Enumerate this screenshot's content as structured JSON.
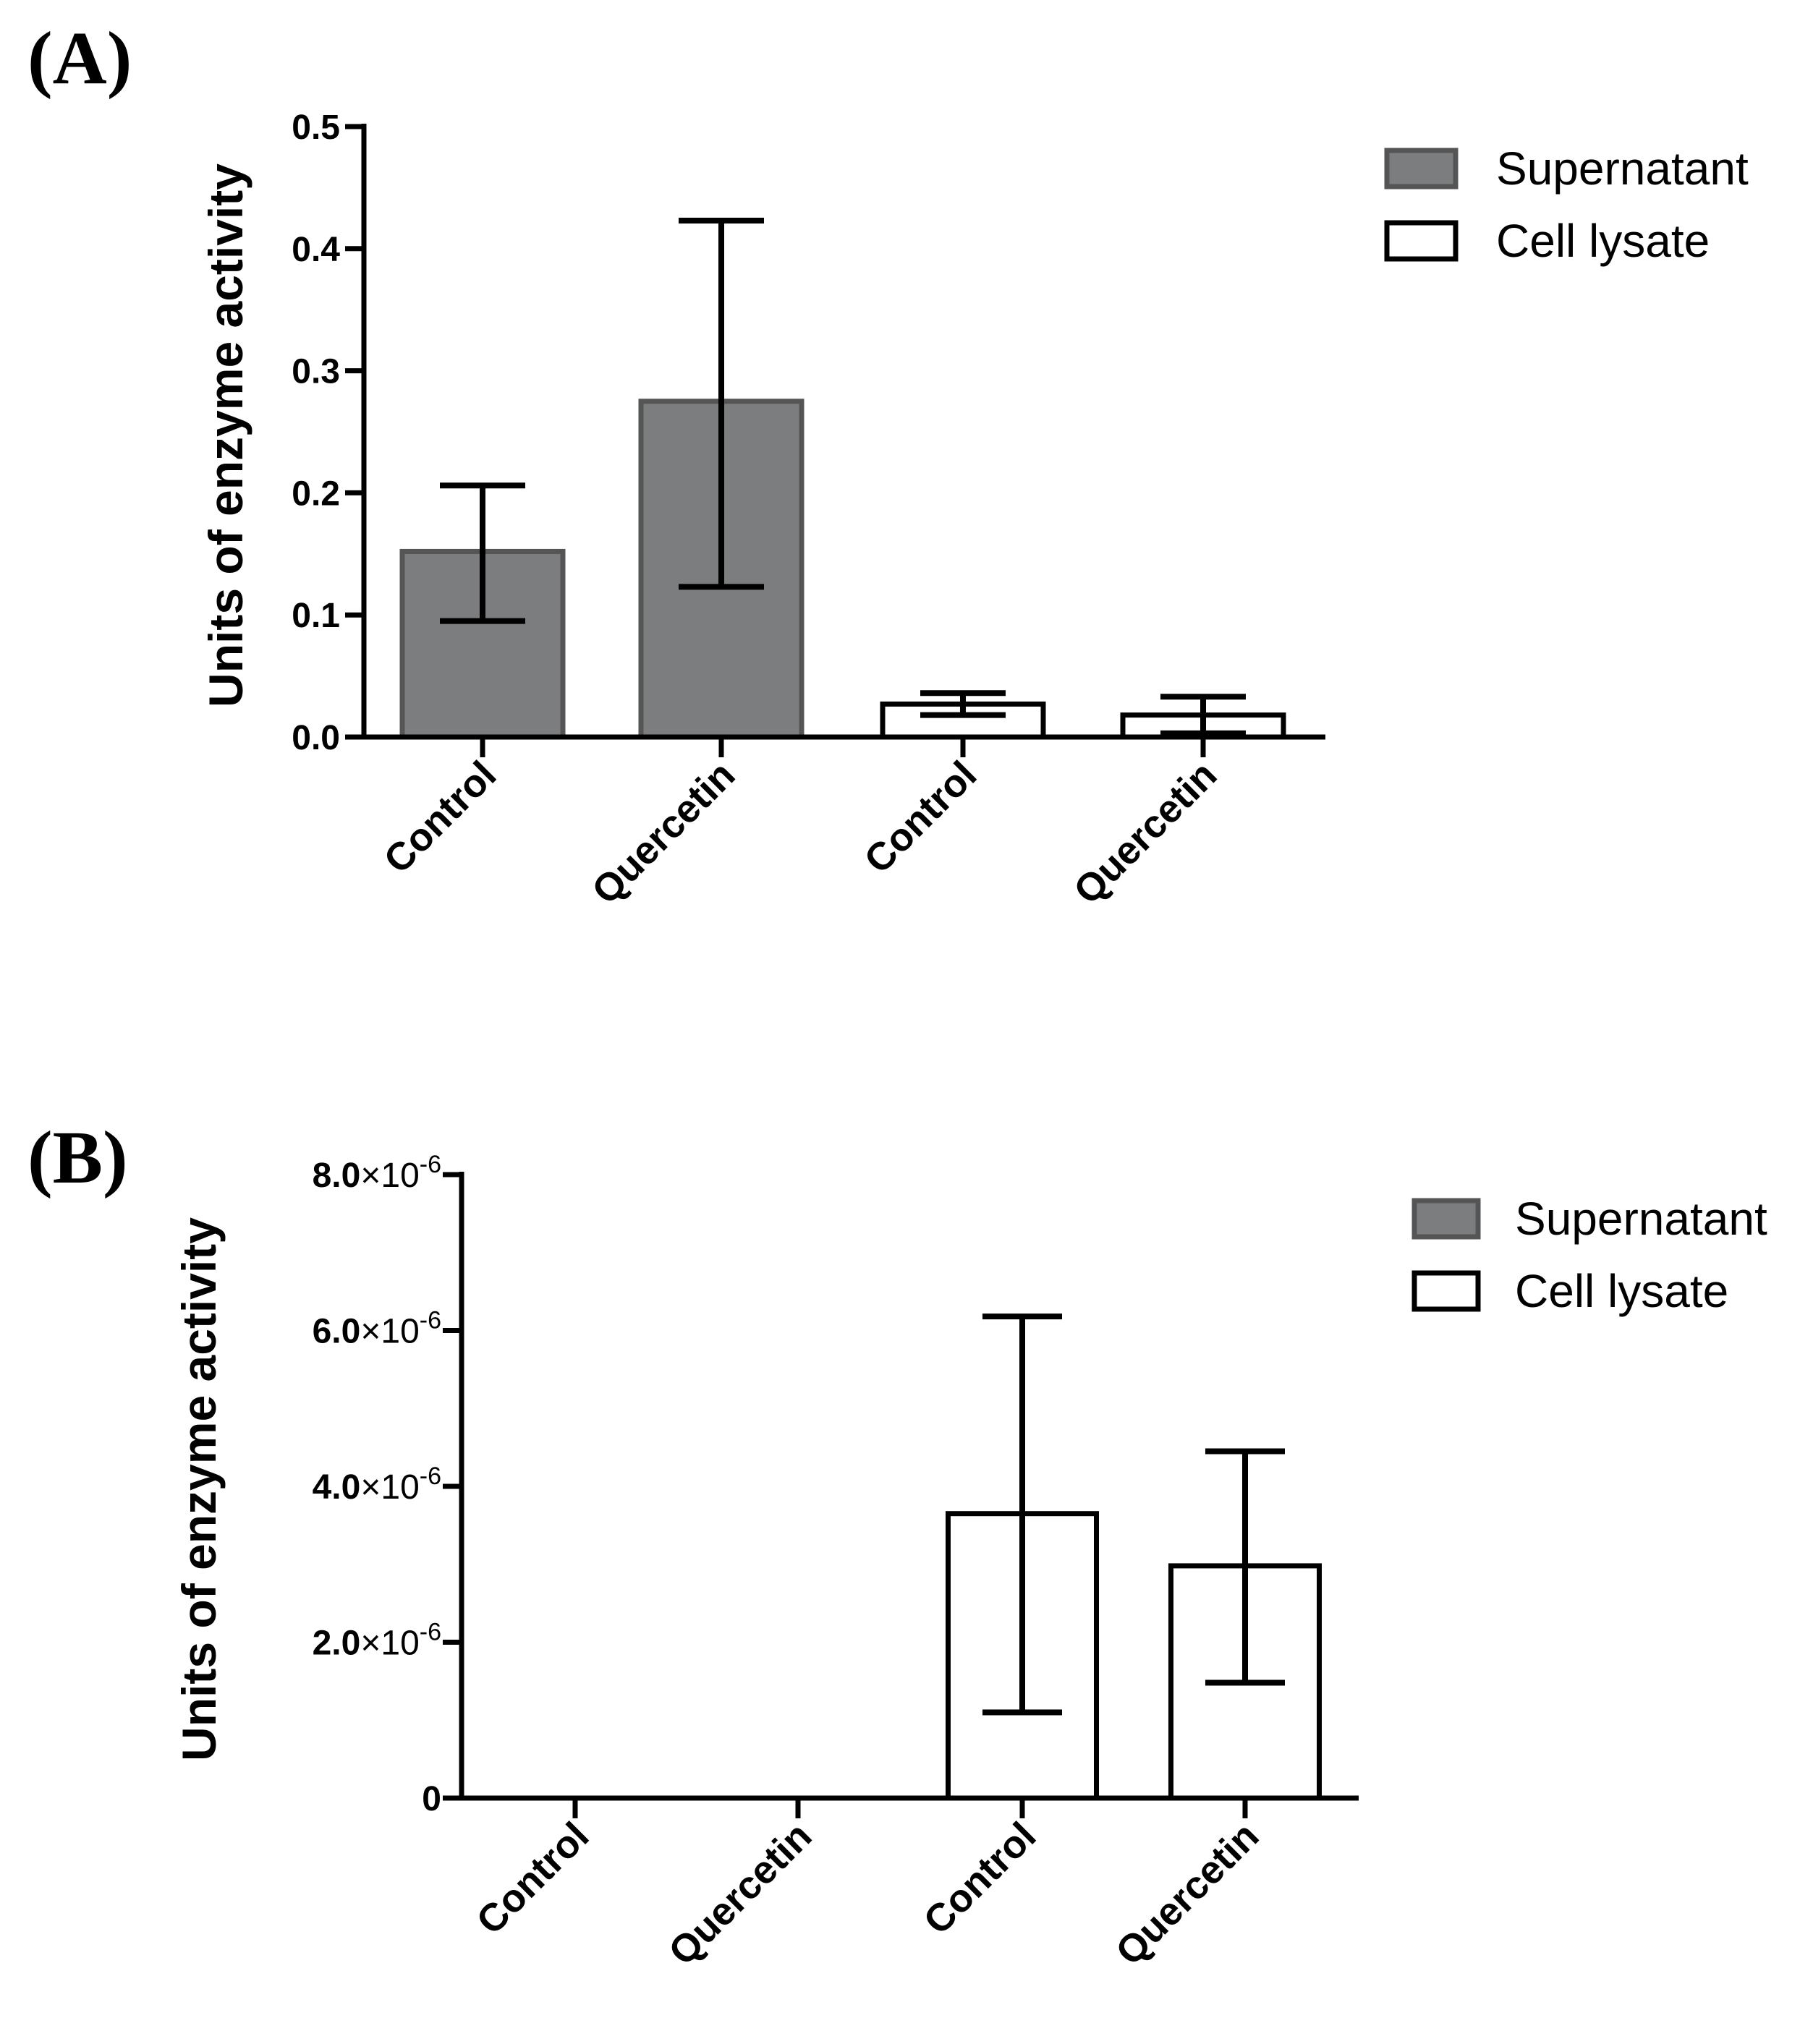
{
  "chart_data": [
    {
      "panel": "(A)",
      "type": "bar",
      "ylabel": "Units of enzyme activity",
      "ylim": [
        0,
        0.5
      ],
      "yticks": [
        {
          "value": 0.0,
          "label": "0.0"
        },
        {
          "value": 0.1,
          "label": "0.1"
        },
        {
          "value": 0.2,
          "label": "0.2"
        },
        {
          "value": 0.3,
          "label": "0.3"
        },
        {
          "value": 0.4,
          "label": "0.4"
        },
        {
          "value": 0.5,
          "label": "0.5"
        }
      ],
      "categories": [
        "Control",
        "Quercetin",
        "Control",
        "Quercetin"
      ],
      "bars": [
        {
          "category": "Control",
          "series": "Supernatant",
          "value": 0.152,
          "err_low": 0.095,
          "err_high": 0.206
        },
        {
          "category": "Quercetin",
          "series": "Supernatant",
          "value": 0.275,
          "err_low": 0.123,
          "err_high": 0.423
        },
        {
          "category": "Control",
          "series": "Cell lysate",
          "value": 0.027,
          "err_low": 0.018,
          "err_high": 0.036
        },
        {
          "category": "Quercetin",
          "series": "Cell lysate",
          "value": 0.018,
          "err_low": 0.003,
          "err_high": 0.033
        }
      ],
      "legend": [
        {
          "name": "Supernatant",
          "color": "#7b7d7e"
        },
        {
          "name": "Cell lysate",
          "color": "#ffffff"
        }
      ]
    },
    {
      "panel": "(B)",
      "type": "bar",
      "ylabel": "Units of enzyme activity",
      "ylim": [
        0,
        8e-06
      ],
      "yticks": [
        {
          "value": 0,
          "label": "0",
          "mant": "0",
          "exp": ""
        },
        {
          "value": 2e-06,
          "label": "2.0×10-6",
          "mant": "2.0",
          "exp": "-6"
        },
        {
          "value": 4e-06,
          "label": "4.0×10-6",
          "mant": "4.0",
          "exp": "-6"
        },
        {
          "value": 6e-06,
          "label": "6.0×10-6",
          "mant": "6.0",
          "exp": "-6"
        },
        {
          "value": 8e-06,
          "label": "8.0×10-6",
          "mant": "8.0",
          "exp": "-6"
        }
      ],
      "categories": [
        "Control",
        "Quercetin",
        "Control",
        "Quercetin"
      ],
      "bars": [
        {
          "category": "Control",
          "series": "Supernatant",
          "value": 0,
          "err_low": null,
          "err_high": null
        },
        {
          "category": "Quercetin",
          "series": "Supernatant",
          "value": 0,
          "err_low": null,
          "err_high": null
        },
        {
          "category": "Control",
          "series": "Cell lysate",
          "value": 3.65e-06,
          "err_low": 1.1e-06,
          "err_high": 6.18e-06
        },
        {
          "category": "Quercetin",
          "series": "Cell lysate",
          "value": 2.98e-06,
          "err_low": 1.48e-06,
          "err_high": 4.45e-06
        }
      ],
      "legend": [
        {
          "name": "Supernatant",
          "color": "#7b7d7e"
        },
        {
          "name": "Cell lysate",
          "color": "#ffffff"
        }
      ]
    }
  ]
}
